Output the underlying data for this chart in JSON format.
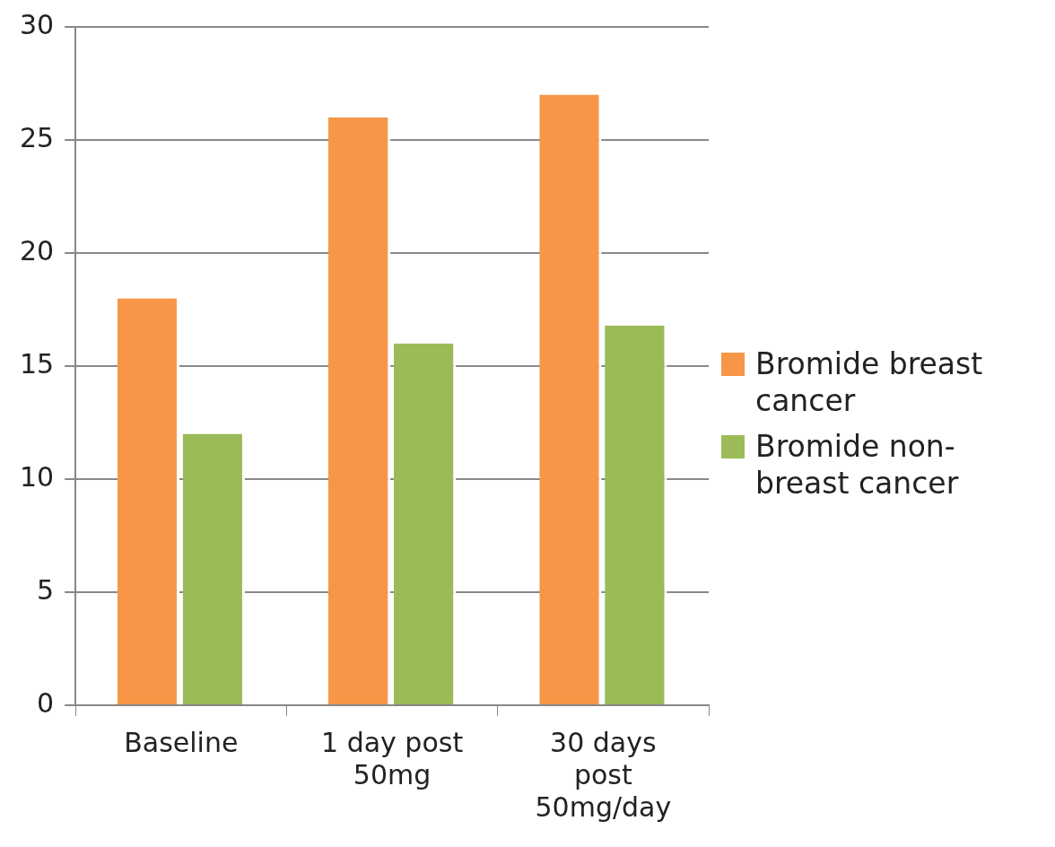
{
  "chart_data": {
    "type": "bar",
    "categories": [
      "Baseline",
      "1 day post 50mg",
      "30 days post 50mg/day"
    ],
    "series": [
      {
        "name": "Bromide breast cancer",
        "color": "#f79646",
        "values": [
          18,
          26,
          27
        ]
      },
      {
        "name": "Bromide non-breast cancer",
        "color": "#9bbb59",
        "values": [
          12,
          16,
          16.8
        ]
      }
    ],
    "ylim": [
      0,
      30
    ],
    "yticks": [
      0,
      5,
      10,
      15,
      20,
      25,
      30
    ],
    "grid": "y",
    "legend": "right"
  }
}
